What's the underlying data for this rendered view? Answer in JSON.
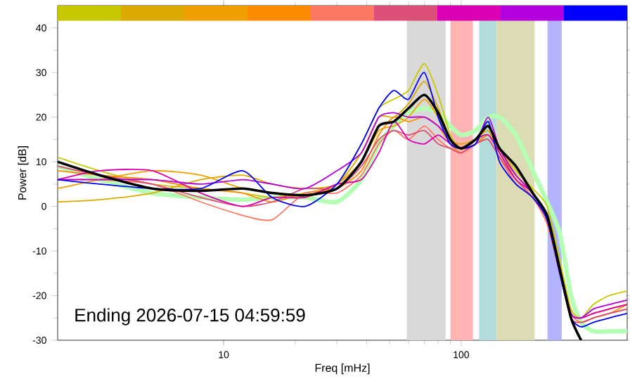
{
  "chart_data": {
    "type": "line",
    "xlabel": "Freq [mHz]",
    "ylabel": "Power [dB]",
    "log": "x",
    "xlim": [
      2,
      500
    ],
    "xticks": [
      10,
      100
    ],
    "ylim": [
      -30,
      45
    ],
    "yticks": [
      -30,
      -20,
      -10,
      0,
      10,
      20,
      30,
      40
    ],
    "x": [
      2,
      3,
      5,
      8,
      12,
      16,
      22,
      30,
      38,
      45,
      52,
      60,
      70,
      80,
      90,
      100,
      115,
      130,
      145,
      170,
      200,
      230,
      260,
      290,
      320,
      360,
      420,
      500
    ],
    "annotations": [
      "Ending 2026-07-15 04:59:59"
    ],
    "bands": [
      {
        "axis": "x",
        "from": 59,
        "to": 86,
        "color": "#d9d9d9"
      },
      {
        "axis": "x",
        "from": 90,
        "to": 112,
        "color": "#ffb3b3"
      },
      {
        "axis": "x",
        "from": 119,
        "to": 141,
        "color": "#b3dcdc"
      },
      {
        "axis": "x",
        "from": 141,
        "to": 204,
        "color": "#dcdcb4"
      },
      {
        "axis": "x",
        "from": 231,
        "to": 265,
        "color": "#b3b3ff"
      }
    ],
    "series": [
      {
        "color": "#b4ffb4",
        "values": [
          9,
          6,
          3,
          2,
          1.5,
          2,
          2,
          1,
          6,
          14,
          18,
          21,
          22,
          21,
          18,
          16,
          17,
          20,
          20,
          16,
          8,
          1,
          -6,
          -20,
          -26,
          -28,
          -28,
          -28
        ]
      },
      {
        "color": "#c8c800",
        "values": [
          11,
          8,
          5,
          4,
          3,
          2,
          3,
          5,
          14,
          22,
          24,
          26,
          32,
          25,
          16,
          13,
          14,
          16,
          13,
          8,
          4,
          0,
          -12,
          -23,
          -25,
          -22,
          -20,
          -19
        ]
      },
      {
        "color": "#dcaa00",
        "values": [
          1,
          1.5,
          3,
          6,
          7,
          5,
          4,
          5,
          12,
          20,
          20,
          23,
          28,
          22,
          15,
          14,
          15,
          17,
          12,
          7,
          3,
          -2,
          -14,
          -24,
          -25,
          -24,
          -23,
          -22
        ]
      },
      {
        "color": "#f0a000",
        "values": [
          4,
          6,
          8,
          7,
          4,
          3,
          2,
          5,
          10,
          17,
          18,
          20,
          24,
          20,
          15,
          13,
          14,
          18,
          12,
          6,
          2,
          -3,
          -15,
          -25,
          -26,
          -25,
          -24,
          -22
        ]
      },
      {
        "color": "#ff8c00",
        "values": [
          8,
          7,
          6,
          4,
          3,
          1,
          3,
          4,
          8,
          16,
          20,
          19,
          20,
          18,
          14,
          12,
          14,
          16,
          13,
          7,
          3,
          -3,
          -14,
          -24,
          -25,
          -24,
          -23,
          -22
        ]
      },
      {
        "color": "#ff7864",
        "values": [
          6,
          6,
          5,
          1,
          -2,
          -3,
          3,
          3,
          7,
          14,
          17,
          15,
          18,
          15,
          13,
          12,
          14,
          15,
          11,
          5,
          2,
          -4,
          -15,
          -24,
          -26,
          -25,
          -24,
          -23
        ]
      },
      {
        "color": "#dc5078",
        "values": [
          9,
          7,
          5,
          2,
          0,
          1,
          4,
          4,
          9,
          15,
          17,
          16,
          17,
          14,
          13,
          12,
          14,
          15,
          11,
          6,
          2,
          -3,
          -15,
          -25,
          -26,
          -25,
          -24,
          -23
        ]
      },
      {
        "color": "#dc00b4",
        "values": [
          6,
          8,
          8,
          3,
          0,
          2,
          2,
          5,
          6,
          12,
          19,
          15,
          14,
          16,
          14,
          13,
          15,
          16,
          12,
          6,
          3,
          -3,
          -14,
          -24,
          -25,
          -24,
          -23,
          -22
        ]
      },
      {
        "color": "#b400dc",
        "values": [
          6,
          6,
          6,
          5,
          6,
          5,
          4,
          8,
          12,
          20,
          21,
          20,
          20,
          18,
          15,
          13,
          14,
          20,
          13,
          7,
          3,
          -3,
          -14,
          -24,
          -25,
          -23,
          -22,
          -21
        ]
      },
      {
        "color": "#0000ff",
        "values": [
          6,
          5,
          4,
          4,
          8,
          2,
          0,
          5,
          14,
          22,
          26,
          24,
          30,
          20,
          14,
          13,
          14,
          19,
          10,
          5,
          2,
          -3,
          -15,
          -25,
          -27,
          -26,
          -25,
          -24
        ]
      },
      {
        "color": "#000000",
        "values": [
          10,
          7,
          4,
          3.5,
          4,
          3,
          2.5,
          4,
          10,
          18,
          19,
          22,
          25,
          21,
          15,
          13,
          15,
          18,
          13,
          9,
          3,
          -2,
          -14,
          -25,
          -30,
          null,
          null,
          null
        ]
      }
    ]
  }
}
